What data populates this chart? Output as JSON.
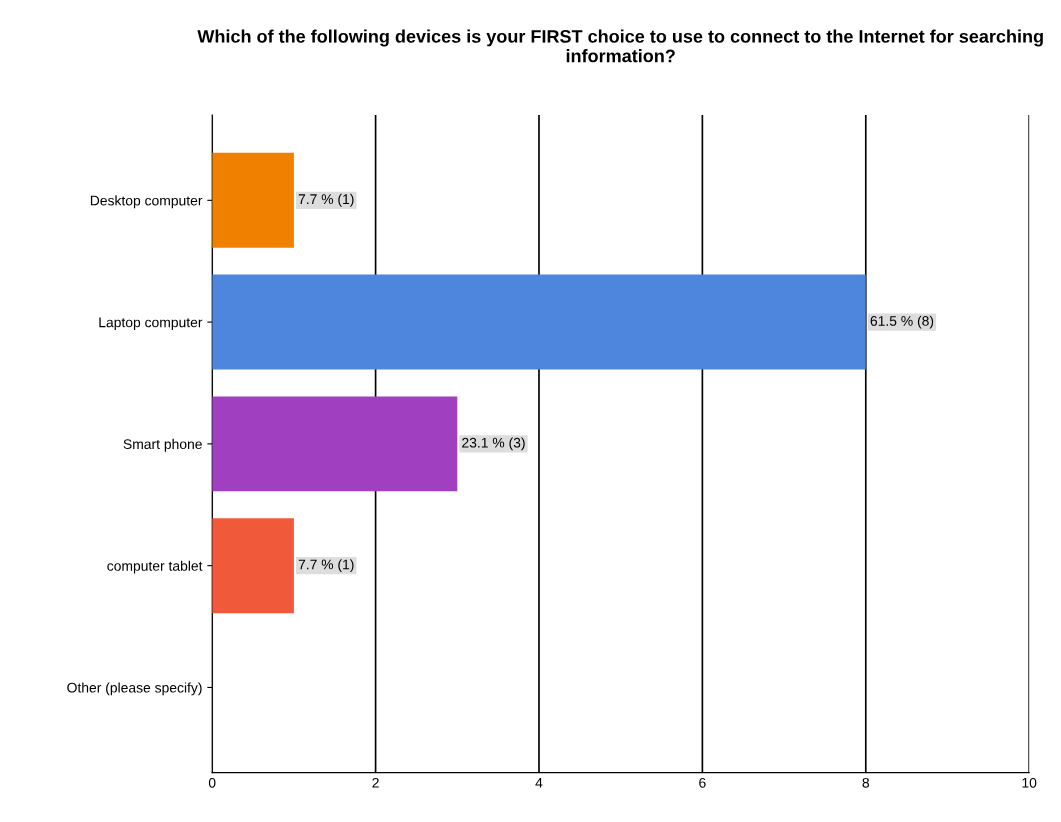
{
  "chart_data": {
    "type": "bar",
    "orientation": "horizontal",
    "title": "Which of the following devices is your FIRST choice to use to connect to the Internet for searching information?",
    "categories": [
      "Desktop computer",
      "Laptop computer",
      "Smart phone",
      "computer tablet",
      "Other (please specify)"
    ],
    "values": [
      1,
      8,
      3,
      1,
      0
    ],
    "colors": [
      "#f08000",
      "#4f86dd",
      "#a040c0",
      "#f05a3a",
      "#888888"
    ],
    "value_labels": [
      "7.7 % (1)",
      "61.5 % (8)",
      "23.1 % (3)",
      "7.7 % (1)",
      null
    ],
    "xlim": [
      0,
      10
    ],
    "xticks": [
      0,
      2,
      4,
      6,
      8,
      10
    ],
    "grid": "x",
    "legend": false
  }
}
